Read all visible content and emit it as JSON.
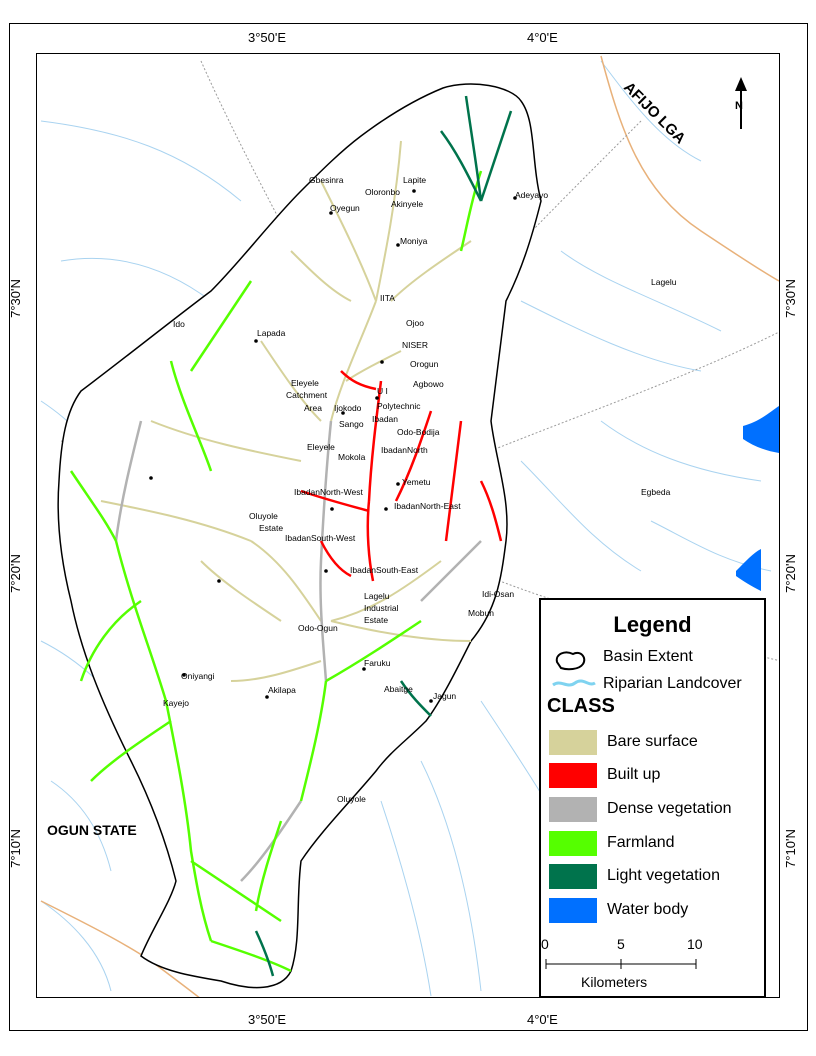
{
  "coordinates": {
    "top": [
      "3°50'E",
      "4°0'E"
    ],
    "bottom": [
      "3°50'E",
      "4°0'E"
    ],
    "left": [
      "7°30'N",
      "7°20'N",
      "7°10'N"
    ],
    "right": [
      "7°30'N",
      "7°20'N",
      "7°10'N"
    ]
  },
  "regions": {
    "afijo": "AFIJO LGA",
    "ogun": "OGUN STATE",
    "lagelu": "Lagelu",
    "egbeda": "Egbeda",
    "ido": "Ido"
  },
  "places": [
    "Gbesinra",
    "Lapite",
    "Oloronbo",
    "Akinyele",
    "Adeyayo",
    "Oyegun",
    "Moniya",
    "IITA",
    "Lapada",
    "Ojoo",
    "NISER",
    "Orogun",
    "Agbowo",
    "Eleyele",
    "Catchment",
    "Area",
    "Ijokodo",
    "U I",
    "Polytechnic",
    "Ibadan",
    "Sango",
    "Odo-Bodija",
    "Eleyele",
    "Mokola",
    "IbadanNorth",
    "Yemetu",
    "IbadanNorth-West",
    "IbadanNorth-East",
    "Oluyole",
    "Estate",
    "IbadanSouth-West",
    "IbadanSouth-East",
    "Idi-Osan",
    "Lagelu",
    "Industrial",
    "Estate",
    "Mobun",
    "Odo-Ogun",
    "Faruku",
    "Oniyangi",
    "Akilapa",
    "Abaitge",
    "Jagun",
    "Kayejo",
    "Oluyole"
  ],
  "north_arrow": "N",
  "legend": {
    "title": "Legend",
    "basin_extent": "Basin Extent",
    "riparian": "Riparian Landcover",
    "class_title": "CLASS",
    "classes": [
      {
        "label": "Bare surface",
        "color": "#d6d29b"
      },
      {
        "label": "Built up",
        "color": "#ff0000"
      },
      {
        "label": "Dense vegetation",
        "color": "#b2b2b2"
      },
      {
        "label": "Farmland",
        "color": "#55ff00"
      },
      {
        "label": "Light vegetation",
        "color": "#00734c"
      },
      {
        "label": "Water body",
        "color": "#0070ff"
      }
    ],
    "scale_ticks": [
      "0",
      "5",
      "10"
    ],
    "scale_units": "Kilometers"
  }
}
